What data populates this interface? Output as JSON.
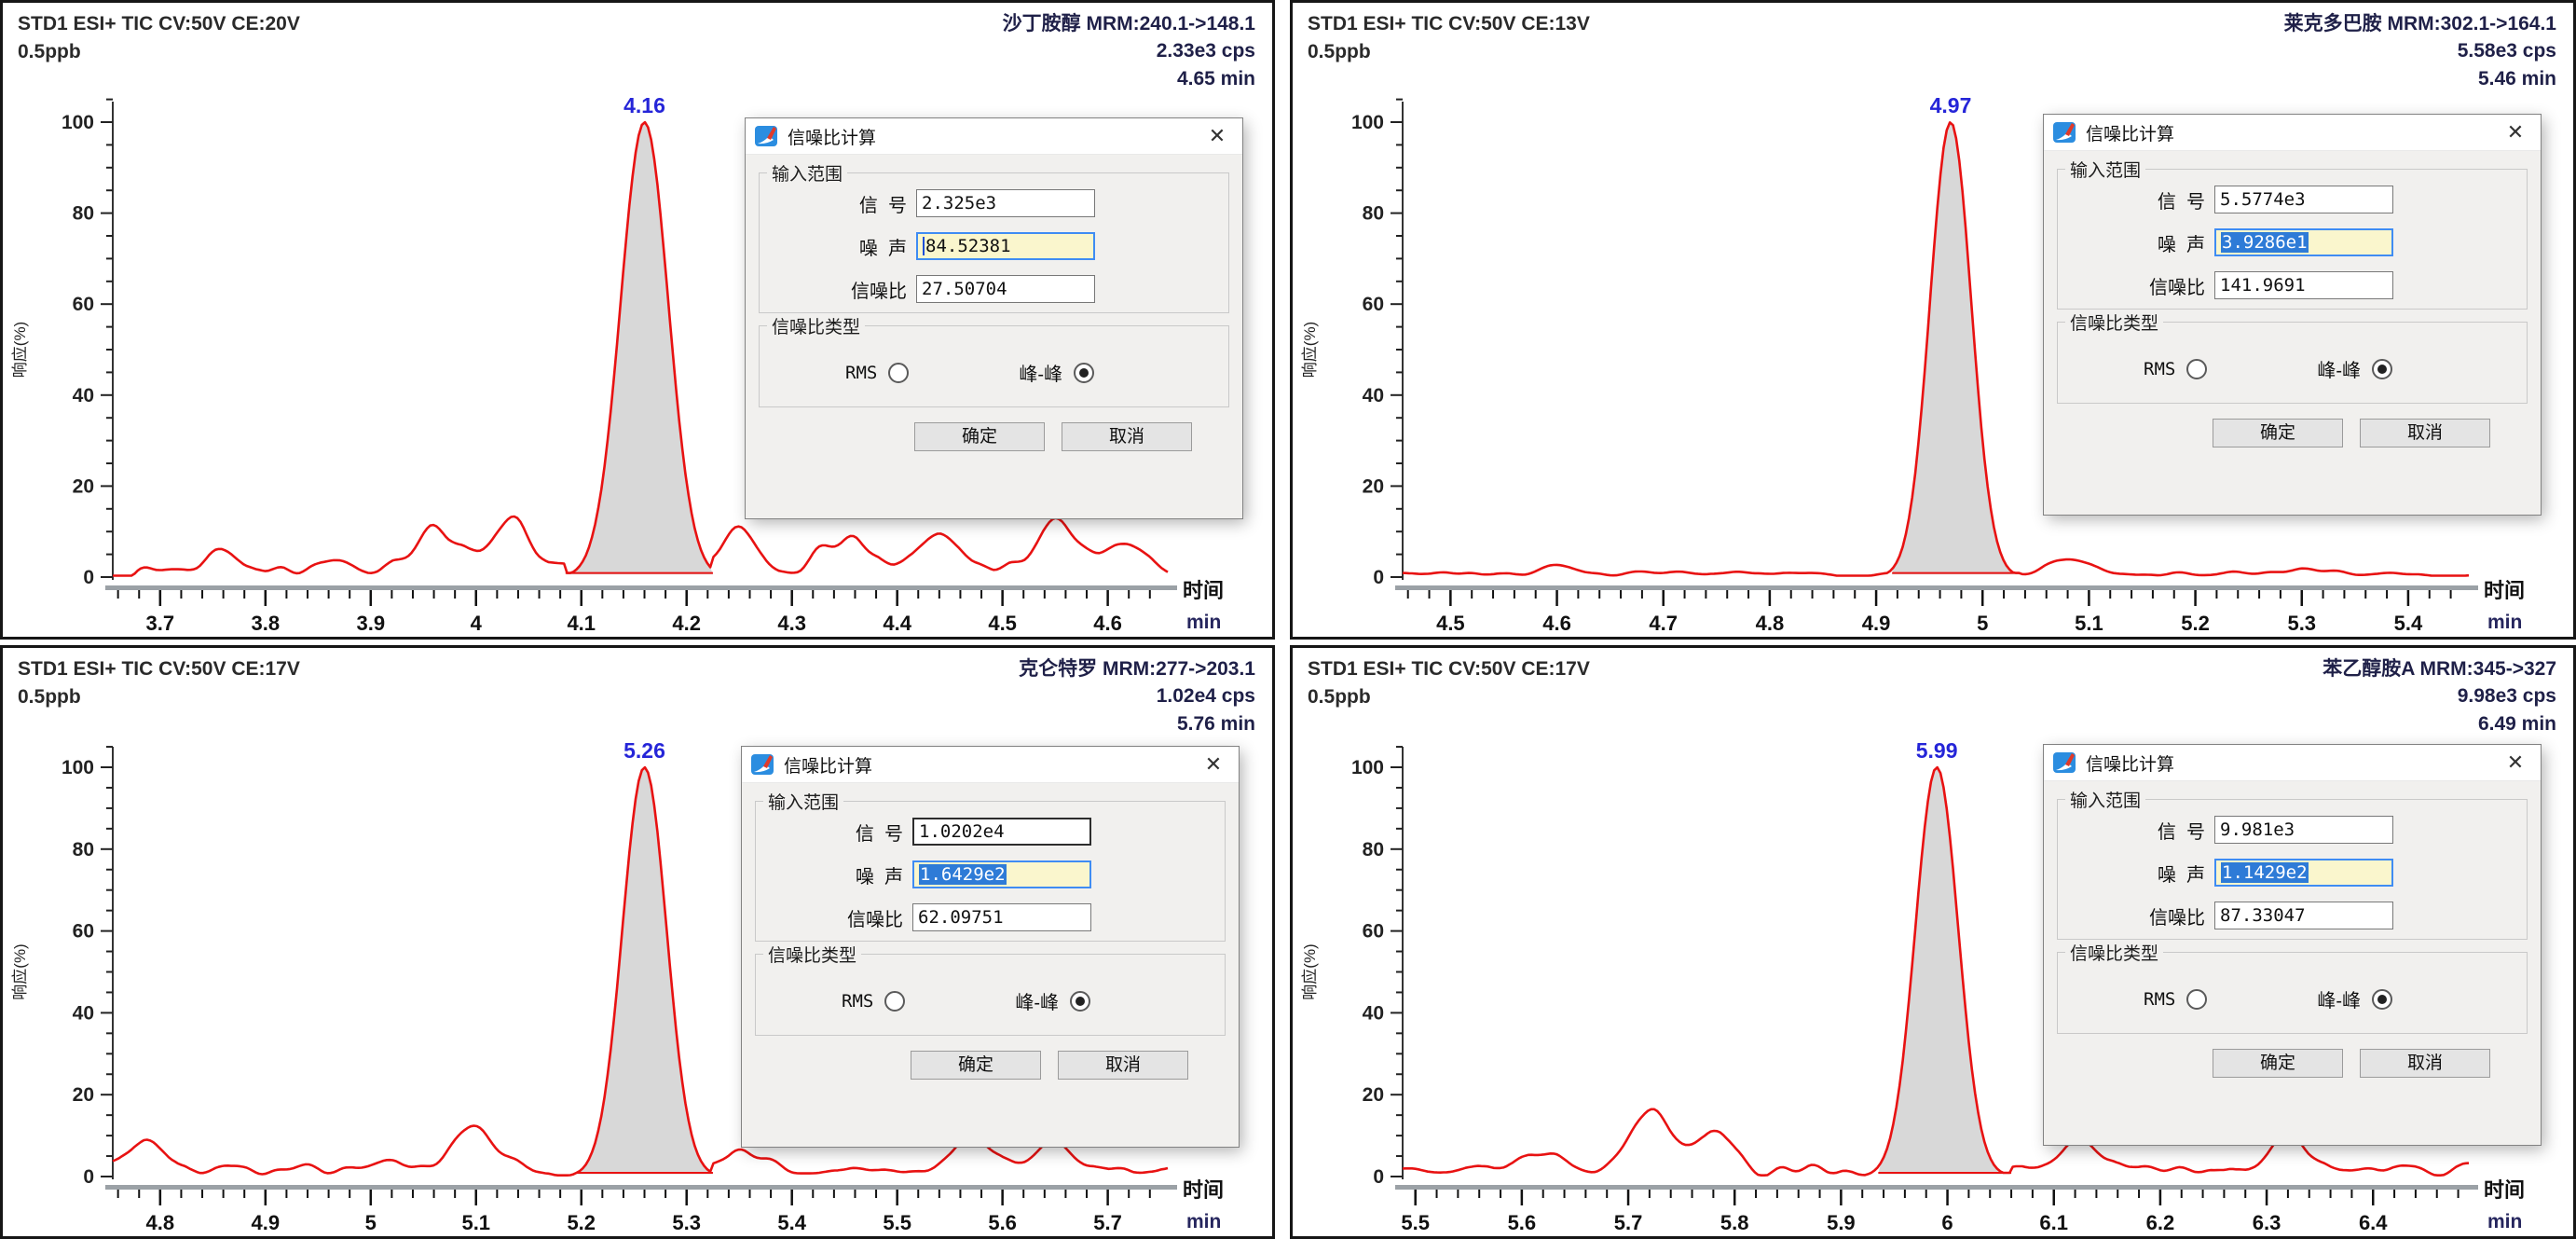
{
  "axis": {
    "y_label": "响应(%)",
    "x_label": "时间",
    "x_unit": "min",
    "y_tick_labels": [
      "0",
      "20",
      "40",
      "60",
      "80",
      "100"
    ]
  },
  "dialog_labels": {
    "title": "信噪比计算",
    "close": "✕",
    "input_range_group": "输入范围",
    "signal_label": "信  号",
    "noise_label": "噪  声",
    "snr_label": "信噪比",
    "snr_type_group": "信噪比类型",
    "rms_label": "RMS",
    "peak_peak_label": "峰-峰",
    "ok_label": "确定",
    "cancel_label": "取消"
  },
  "colors": {
    "trace": "#e81212",
    "peak_fill": "#d8d8d8",
    "peak_label": "#2525d8",
    "selection": "#2e7bd7",
    "noise_field_bg": "#faf6cd",
    "focus_border": "#3f8cf3"
  },
  "panels": [
    {
      "acquisition": "STD1 ESI+ TIC CV:50V CE:20V",
      "concentration": "0.5ppb",
      "compound": "沙丁胺醇",
      "mrm": "MRM:240.1->148.1",
      "intensity": "2.33e3 cps",
      "retention": "4.65 min",
      "peak_label": "4.16",
      "dialog": {
        "signal": "2.325e3",
        "noise": "84.52381",
        "snr": "27.50704",
        "noise_selected": false,
        "signal_focused": false,
        "rms_selected": false,
        "peak_peak_selected": true
      }
    },
    {
      "acquisition": "STD1 ESI+ TIC CV:50V CE:13V",
      "concentration": "0.5ppb",
      "compound": "莱克多巴胺",
      "mrm": "MRM:302.1->164.1",
      "intensity": "5.58e3 cps",
      "retention": "5.46 min",
      "peak_label": "4.97",
      "dialog": {
        "signal": "5.5774e3",
        "noise": "3.9286e1",
        "snr": "141.9691",
        "noise_selected": true,
        "signal_focused": false,
        "rms_selected": false,
        "peak_peak_selected": true
      }
    },
    {
      "acquisition": "STD1 ESI+ TIC CV:50V CE:17V",
      "concentration": "0.5ppb",
      "compound": "克仑特罗",
      "mrm": "MRM:277->203.1",
      "intensity": "1.02e4 cps",
      "retention": "5.76 min",
      "peak_label": "5.26",
      "dialog": {
        "signal": "1.0202e4",
        "noise": "1.6429e2",
        "snr": "62.09751",
        "noise_selected": true,
        "signal_focused": true,
        "rms_selected": false,
        "peak_peak_selected": true
      }
    },
    {
      "acquisition": "STD1 ESI+ TIC CV:50V CE:17V",
      "concentration": "0.5ppb",
      "compound": "苯乙醇胺A",
      "mrm": "MRM:345->327",
      "intensity": "9.98e3 cps",
      "retention": "6.49 min",
      "peak_label": "5.99",
      "dialog": {
        "signal": "9.981e3",
        "noise": "1.1429e2",
        "snr": "87.33047",
        "noise_selected": true,
        "signal_focused": false,
        "rms_selected": false,
        "peak_peak_selected": true
      }
    }
  ],
  "chart_data": [
    {
      "type": "line",
      "title": "沙丁胺醇 MRM:240.1->148.1",
      "xlabel": "时间 (min)",
      "ylabel": "响应(%)",
      "ylim": [
        0,
        100
      ],
      "x_range": [
        3.655,
        4.657
      ],
      "x_tick_labels": [
        "3.7",
        "3.8",
        "3.9",
        "4",
        "4.1",
        "4.2",
        "4.3",
        "4.4",
        "4.5",
        "4.6"
      ],
      "peak": {
        "rt": 4.16,
        "rt_label": "4.16",
        "height_pct": 100,
        "integration_start": 4.085,
        "integration_end": 4.225
      },
      "baseline_noise_pct": 3.5,
      "noise_bumps": [
        [
          3.76,
          5
        ],
        [
          3.96,
          9
        ],
        [
          4.03,
          11
        ],
        [
          4.25,
          8
        ],
        [
          4.35,
          7
        ],
        [
          4.44,
          8
        ],
        [
          4.55,
          11
        ],
        [
          4.62,
          6
        ]
      ],
      "signal_cps": 2325,
      "noise_cps": 84.52381,
      "snr": 27.50704
    },
    {
      "type": "line",
      "title": "莱克多巴胺 MRM:302.1->164.1",
      "xlabel": "时间 (min)",
      "ylabel": "响应(%)",
      "ylim": [
        0,
        100
      ],
      "x_range": [
        4.455,
        5.457
      ],
      "x_tick_labels": [
        "4.5",
        "4.6",
        "4.7",
        "4.8",
        "4.9",
        "5",
        "5.1",
        "5.2",
        "5.3",
        "5.4"
      ],
      "peak": {
        "rt": 4.97,
        "rt_label": "4.97",
        "height_pct": 100,
        "integration_start": 4.915,
        "integration_end": 5.035
      },
      "baseline_noise_pct": 1.2,
      "noise_bumps": [
        [
          4.6,
          2
        ],
        [
          5.08,
          3
        ],
        [
          5.3,
          1.5
        ]
      ],
      "signal_cps": 5577.4,
      "noise_cps": 39.286,
      "snr": 141.9691
    },
    {
      "type": "line",
      "title": "克仑特罗 MRM:277->203.1",
      "xlabel": "时间 (min)",
      "ylabel": "响应(%)",
      "ylim": [
        0,
        100
      ],
      "x_range": [
        4.755,
        5.757
      ],
      "x_tick_labels": [
        "4.8",
        "4.9",
        "5",
        "5.1",
        "5.2",
        "5.3",
        "5.4",
        "5.5",
        "5.6",
        "5.7"
      ],
      "peak": {
        "rt": 5.26,
        "rt_label": "5.26",
        "height_pct": 100,
        "integration_start": 5.195,
        "integration_end": 5.325
      },
      "baseline_noise_pct": 3.2,
      "noise_bumps": [
        [
          4.79,
          7
        ],
        [
          5.1,
          11
        ],
        [
          5.35,
          5
        ],
        [
          5.57,
          9
        ],
        [
          5.65,
          6
        ]
      ],
      "signal_cps": 10202,
      "noise_cps": 164.29,
      "snr": 62.09751
    },
    {
      "type": "line",
      "title": "苯乙醇胺A MRM:345->327",
      "xlabel": "时间 (min)",
      "ylabel": "响应(%)",
      "ylim": [
        0,
        100
      ],
      "x_range": [
        5.488,
        6.49
      ],
      "x_tick_labels": [
        "5.5",
        "5.6",
        "5.7",
        "5.8",
        "5.9",
        "6",
        "6.1",
        "6.2",
        "6.3",
        "6.4"
      ],
      "peak": {
        "rt": 5.99,
        "rt_label": "5.99",
        "height_pct": 100,
        "integration_start": 5.935,
        "integration_end": 6.06
      },
      "baseline_noise_pct": 3.2,
      "noise_bumps": [
        [
          5.62,
          4
        ],
        [
          5.72,
          15
        ],
        [
          5.78,
          10
        ],
        [
          6.12,
          6
        ],
        [
          6.32,
          8
        ]
      ],
      "signal_cps": 9981,
      "noise_cps": 114.29,
      "snr": 87.33047
    }
  ]
}
